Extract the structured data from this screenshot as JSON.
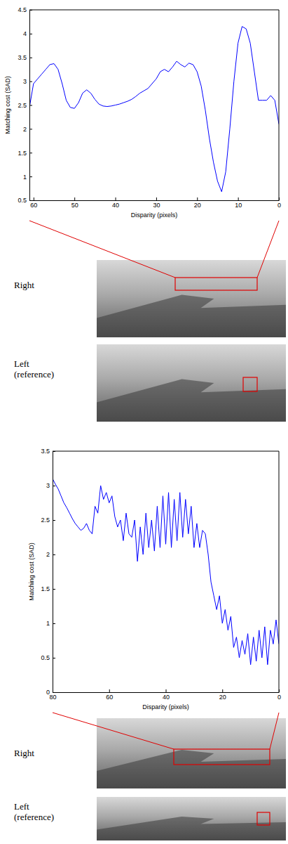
{
  "chart_data": [
    {
      "type": "line",
      "x_label": "Disparity (pixels)",
      "y_label": "Matching cost (SAD)",
      "annotations": [
        "Right",
        "Left (reference)"
      ],
      "xlim": [
        61,
        0
      ],
      "xticks": [
        60,
        50,
        40,
        30,
        20,
        10,
        0
      ],
      "ylim": [
        0.5,
        4.5
      ],
      "yticks": [
        0.5,
        1,
        1.5,
        2,
        2.5,
        3,
        3.5,
        4,
        4.5
      ],
      "color": "#0000ff",
      "x": [
        61,
        60,
        59,
        58,
        57,
        56,
        55,
        54,
        53,
        52,
        51,
        50,
        49,
        48,
        47,
        46,
        45,
        44,
        43,
        42,
        41,
        40,
        39,
        38,
        37,
        36,
        35,
        34,
        33,
        32,
        31,
        30,
        29,
        28,
        27,
        26,
        25,
        24,
        23,
        22,
        21,
        20,
        19,
        18,
        17,
        16,
        15,
        14,
        13,
        12,
        11,
        10,
        9,
        8,
        7,
        6,
        5,
        4,
        3,
        2,
        1,
        0
      ],
      "values": [
        2.45,
        2.95,
        3.05,
        3.15,
        3.25,
        3.35,
        3.37,
        3.25,
        2.95,
        2.6,
        2.45,
        2.43,
        2.55,
        2.75,
        2.82,
        2.75,
        2.62,
        2.52,
        2.48,
        2.47,
        2.48,
        2.5,
        2.52,
        2.55,
        2.58,
        2.62,
        2.68,
        2.75,
        2.8,
        2.85,
        2.95,
        3.05,
        3.2,
        3.25,
        3.2,
        3.3,
        3.42,
        3.35,
        3.3,
        3.38,
        3.35,
        3.2,
        2.9,
        2.4,
        1.8,
        1.3,
        0.9,
        0.68,
        1.1,
        2.0,
        3.0,
        3.8,
        4.15,
        4.1,
        3.8,
        3.2,
        2.6,
        2.6,
        2.6,
        2.7,
        2.6,
        2.1
      ]
    },
    {
      "type": "line",
      "x_label": "Disparity (pixels)",
      "y_label": "Matching cost (SAD)",
      "annotations": [
        "Right",
        "Left (reference)"
      ],
      "xlim": [
        80,
        0
      ],
      "xticks": [
        80,
        60,
        40,
        20,
        0
      ],
      "ylim": [
        0,
        3.5
      ],
      "yticks": [
        0,
        0.5,
        1,
        1.5,
        2,
        2.5,
        3,
        3.5
      ],
      "color": "#0000ff",
      "x": [
        80,
        79,
        78,
        77,
        76,
        75,
        74,
        73,
        72,
        71,
        70,
        69,
        68,
        67,
        66,
        65,
        64,
        63,
        62,
        61,
        60,
        59,
        58,
        57,
        56,
        55,
        54,
        53,
        52,
        51,
        50,
        49,
        48,
        47,
        46,
        45,
        44,
        43,
        42,
        41,
        40,
        39,
        38,
        37,
        36,
        35,
        34,
        33,
        32,
        31,
        30,
        29,
        28,
        27,
        26,
        25,
        24,
        23,
        22,
        21,
        20,
        19,
        18,
        17,
        16,
        15,
        14,
        13,
        12,
        11,
        10,
        9,
        8,
        7,
        6,
        5,
        4,
        3,
        2,
        1,
        0
      ],
      "values": [
        3.1,
        3.02,
        2.95,
        2.85,
        2.75,
        2.68,
        2.6,
        2.52,
        2.45,
        2.4,
        2.35,
        2.38,
        2.45,
        2.35,
        2.3,
        2.7,
        2.6,
        3.0,
        2.8,
        2.9,
        2.75,
        2.85,
        2.55,
        2.4,
        2.5,
        2.2,
        2.6,
        2.3,
        2.25,
        2.5,
        1.9,
        2.4,
        2.0,
        2.6,
        2.1,
        2.5,
        2.05,
        2.7,
        2.1,
        2.85,
        2.15,
        2.9,
        2.1,
        2.8,
        2.2,
        2.9,
        2.25,
        2.8,
        2.3,
        2.7,
        2.1,
        2.45,
        2.1,
        2.35,
        2.3,
        2.0,
        1.6,
        1.4,
        1.2,
        1.4,
        1.0,
        1.2,
        0.9,
        1.1,
        0.65,
        0.8,
        0.5,
        0.75,
        0.55,
        0.85,
        0.4,
        0.8,
        0.45,
        0.9,
        0.5,
        0.95,
        0.4,
        0.9,
        0.7,
        1.05,
        0.7
      ]
    }
  ]
}
